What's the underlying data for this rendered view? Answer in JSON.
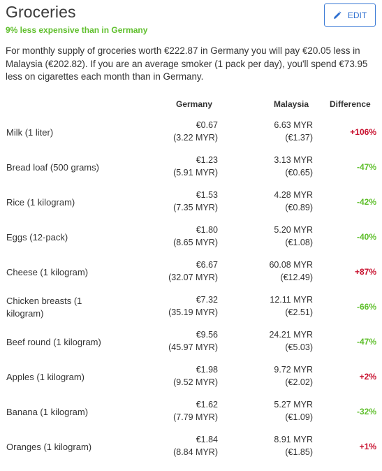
{
  "header": {
    "title": "Groceries",
    "subtitle": "9% less expensive than in Germany",
    "edit_label": "EDIT"
  },
  "intro": "For monthly supply of groceries worth €222.87 in Germany you will pay €20.05 less in Malaysia (€202.82). If you are an average smoker (1 pack per day), you'll spend €73.95 less on cigarettes each month than in Germany.",
  "table": {
    "headers": [
      "Germany",
      "Malaysia",
      "Difference"
    ],
    "rows": [
      {
        "item": "Milk (1 liter)",
        "germany_eur": "€0.67",
        "germany_myr": "(3.22 MYR)",
        "malaysia_myr": "6.63 MYR",
        "malaysia_eur": "(€1.37)",
        "difference": "+106%",
        "sign": "pos"
      },
      {
        "item": "Bread loaf (500 grams)",
        "germany_eur": "€1.23",
        "germany_myr": "(5.91 MYR)",
        "malaysia_myr": "3.13 MYR",
        "malaysia_eur": "(€0.65)",
        "difference": "-47%",
        "sign": "neg"
      },
      {
        "item": "Rice (1 kilogram)",
        "germany_eur": "€1.53",
        "germany_myr": "(7.35 MYR)",
        "malaysia_myr": "4.28 MYR",
        "malaysia_eur": "(€0.89)",
        "difference": "-42%",
        "sign": "neg"
      },
      {
        "item": "Eggs (12-pack)",
        "germany_eur": "€1.80",
        "germany_myr": "(8.65 MYR)",
        "malaysia_myr": "5.20 MYR",
        "malaysia_eur": "(€1.08)",
        "difference": "-40%",
        "sign": "neg"
      },
      {
        "item": "Cheese (1 kilogram)",
        "germany_eur": "€6.67",
        "germany_myr": "(32.07 MYR)",
        "malaysia_myr": "60.08 MYR",
        "malaysia_eur": "(€12.49)",
        "difference": "+87%",
        "sign": "pos"
      },
      {
        "item": "Chicken breasts (1 kilogram)",
        "germany_eur": "€7.32",
        "germany_myr": "(35.19 MYR)",
        "malaysia_myr": "12.11 MYR",
        "malaysia_eur": "(€2.51)",
        "difference": "-66%",
        "sign": "neg"
      },
      {
        "item": "Beef round (1 kilogram)",
        "germany_eur": "€9.56",
        "germany_myr": "(45.97 MYR)",
        "malaysia_myr": "24.21 MYR",
        "malaysia_eur": "(€5.03)",
        "difference": "-47%",
        "sign": "neg"
      },
      {
        "item": "Apples (1 kilogram)",
        "germany_eur": "€1.98",
        "germany_myr": "(9.52 MYR)",
        "malaysia_myr": "9.72 MYR",
        "malaysia_eur": "(€2.02)",
        "difference": "+2%",
        "sign": "pos"
      },
      {
        "item": "Banana (1 kilogram)",
        "germany_eur": "€1.62",
        "germany_myr": "(7.79 MYR)",
        "malaysia_myr": "5.27 MYR",
        "malaysia_eur": "(€1.09)",
        "difference": "-32%",
        "sign": "neg"
      },
      {
        "item": "Oranges (1 kilogram)",
        "germany_eur": "€1.84",
        "germany_myr": "(8.84 MYR)",
        "malaysia_myr": "8.91 MYR",
        "malaysia_eur": "(€1.85)",
        "difference": "+1%",
        "sign": "pos"
      }
    ]
  },
  "colors": {
    "accent_blue": "#2e6fd0",
    "positive_red": "#c8102e",
    "negative_green": "#5fbf2c"
  },
  "icons": {
    "edit": "pencil-icon"
  }
}
